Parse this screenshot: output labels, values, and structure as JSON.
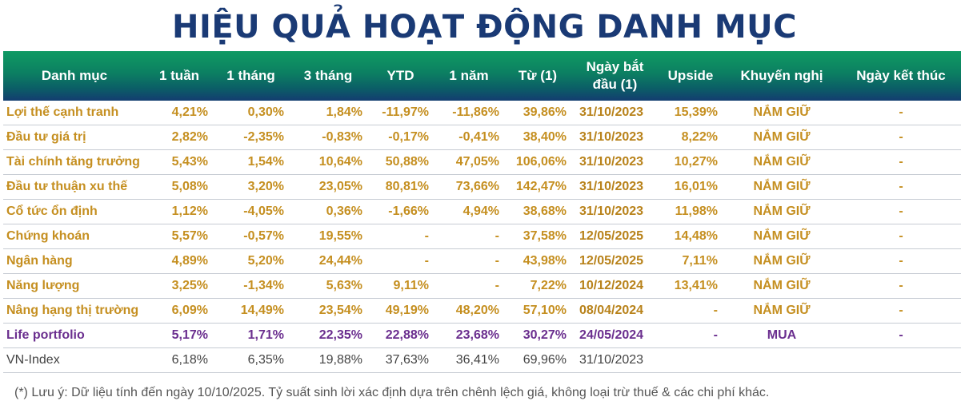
{
  "title": "HIỆU QUẢ HOẠT ĐỘNG DANH MỤC",
  "columns": [
    "Danh mục",
    "1 tuần",
    "1 tháng",
    "3 tháng",
    "YTD",
    "1 năm",
    "Từ (1)",
    "Ngày bắt đầu (1)",
    "Upside",
    "Khuyến nghị",
    "Ngày kết thúc"
  ],
  "rows": [
    [
      "Lợi thế cạnh tranh",
      "4,21%",
      "0,30%",
      "1,84%",
      "-11,97%",
      "-11,86%",
      "39,86%",
      "31/10/2023",
      "15,39%",
      "NẮM GIỮ",
      "-"
    ],
    [
      "Đầu tư giá trị",
      "2,82%",
      "-2,35%",
      "-0,83%",
      "-0,17%",
      "-0,41%",
      "38,40%",
      "31/10/2023",
      "8,22%",
      "NẮM GIỮ",
      "-"
    ],
    [
      "Tài chính tăng trưởng",
      "5,43%",
      "1,54%",
      "10,64%",
      "50,88%",
      "47,05%",
      "106,06%",
      "31/10/2023",
      "10,27%",
      "NẮM GIỮ",
      "-"
    ],
    [
      "Đầu tư thuận xu thế",
      "5,08%",
      "3,20%",
      "23,05%",
      "80,81%",
      "73,66%",
      "142,47%",
      "31/10/2023",
      "16,01%",
      "NẮM GIỮ",
      "-"
    ],
    [
      "Cổ tức ổn định",
      "1,12%",
      "-4,05%",
      "0,36%",
      "-1,66%",
      "4,94%",
      "38,68%",
      "31/10/2023",
      "11,98%",
      "NẮM GIỮ",
      "-"
    ],
    [
      "Chứng khoán",
      "5,57%",
      "-0,57%",
      "19,55%",
      "-",
      "-",
      "37,58%",
      "12/05/2025",
      "14,48%",
      "NẮM GIỮ",
      "-"
    ],
    [
      "Ngân hàng",
      "4,89%",
      "5,20%",
      "24,44%",
      "-",
      "-",
      "43,98%",
      "12/05/2025",
      "7,11%",
      "NẮM GIỮ",
      "-"
    ],
    [
      "Năng lượng",
      "3,25%",
      "-1,34%",
      "5,63%",
      "9,11%",
      "-",
      "7,22%",
      "10/12/2024",
      "13,41%",
      "NẮM GIỮ",
      "-"
    ],
    [
      "Nâng hạng thị trường",
      "6,09%",
      "14,49%",
      "23,54%",
      "49,19%",
      "48,20%",
      "57,10%",
      "08/04/2024",
      "-",
      "NẮM GIỮ",
      "-"
    ],
    [
      "Life portfolio",
      "5,17%",
      "1,71%",
      "22,35%",
      "22,88%",
      "23,68%",
      "30,27%",
      "24/05/2024",
      "-",
      "MUA",
      "-"
    ],
    [
      "VN-Index",
      "6,18%",
      "6,35%",
      "19,88%",
      "37,63%",
      "36,41%",
      "69,96%",
      "31/10/2023",
      "",
      "",
      ""
    ]
  ],
  "note": "(*) Lưu ý: Dữ liệu tính đến ngày 10/10/2025. Tỷ suất sinh lời xác định dựa trên chênh lệch giá, không loại trừ thuế & các chi phí khác."
}
